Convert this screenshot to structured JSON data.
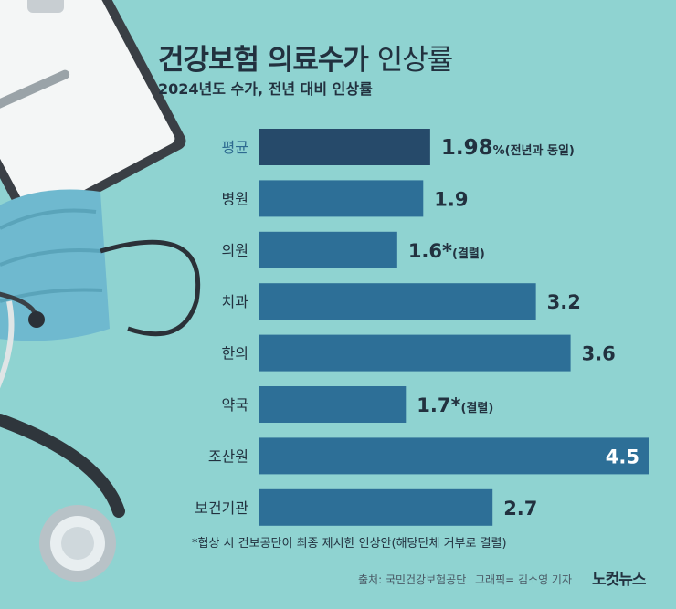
{
  "title_bold": "건강보험 의료수가",
  "title_light": "인상률",
  "subtitle": "2024년도 수가, 전년 대비 인상률",
  "footnote": "*협상 시 건보공단이 최종 제시한 인상안(해당단체 거부로 결렬)",
  "source": "출처: 국민건강보험공단",
  "credit": "그래픽= 김소영 기자",
  "logo": "노컷뉴스",
  "colors": {
    "bar": "#2d6f97",
    "bar_highlight": "#264a6a",
    "text": "#22313f",
    "highlight_label": "#2d6a90"
  },
  "chart_data": {
    "type": "bar",
    "orientation": "horizontal",
    "categories": [
      "평균",
      "병원",
      "의원",
      "치과",
      "한의",
      "약국",
      "조산원",
      "보건기관"
    ],
    "values": [
      1.98,
      1.9,
      1.6,
      3.2,
      3.6,
      1.7,
      4.5,
      2.7
    ],
    "value_labels": [
      "1.98",
      "1.9",
      "1.6*",
      "3.2",
      "3.6",
      "1.7*",
      "4.5",
      "2.7"
    ],
    "annotations": [
      "%(전년과 동일)",
      "",
      "(결렬)",
      "",
      "",
      "(결렬)",
      "",
      ""
    ],
    "highlight_index": 0,
    "title": "건강보험 의료수가 인상률",
    "xlim": [
      0,
      4.5
    ]
  }
}
